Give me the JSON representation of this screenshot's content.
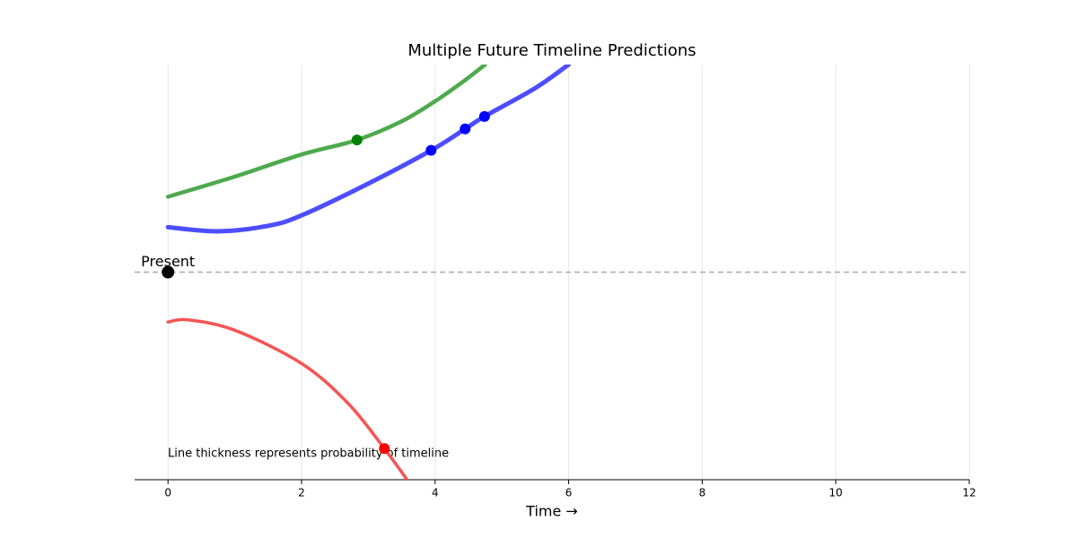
{
  "chart_data": {
    "type": "line",
    "title": "Multiple Future Timeline Predictions",
    "xlabel": "Time →",
    "annotation": "Line thickness represents probability of timeline",
    "xlim": [
      -0.5,
      12
    ],
    "ylim": [
      -3,
      3
    ],
    "xticks": [
      0,
      2,
      4,
      6,
      8,
      10,
      12
    ],
    "grid": true,
    "reference_y": 0,
    "present": {
      "label": "Present",
      "x": 0,
      "y": 0,
      "color": "#000000"
    },
    "series": [
      {
        "color": "#4caa4c",
        "width": 4.5,
        "x": [
          0,
          1,
          2,
          2.83,
          3.5,
          4,
          4.4,
          4.75
        ],
        "values": [
          1.09,
          1.38,
          1.7,
          1.91,
          2.18,
          2.47,
          2.74,
          3.0
        ],
        "points": {
          "color": "#008000",
          "x": [
            2.83
          ],
          "values": [
            1.91
          ]
        }
      },
      {
        "color": "#4d4dff",
        "width": 5,
        "x": [
          0,
          0.75,
          1.5,
          2,
          3,
          3.94,
          4.45,
          4.74,
          5.5,
          6
        ],
        "values": [
          0.65,
          0.59,
          0.67,
          0.82,
          1.28,
          1.76,
          2.07,
          2.25,
          2.66,
          3.0
        ],
        "points": {
          "color": "#0000ff",
          "x": [
            3.94,
            4.45,
            4.74
          ],
          "values": [
            1.76,
            2.07,
            2.25
          ]
        }
      },
      {
        "color": "#f55454",
        "width": 3.5,
        "x": [
          0,
          0.3,
          1,
          2,
          2.7,
          3.24,
          3.58
        ],
        "values": [
          -0.72,
          -0.69,
          -0.84,
          -1.32,
          -1.9,
          -2.55,
          -3.0
        ],
        "points": {
          "color": "#ff0000",
          "x": [
            3.24
          ],
          "values": [
            -2.55
          ]
        }
      }
    ]
  }
}
